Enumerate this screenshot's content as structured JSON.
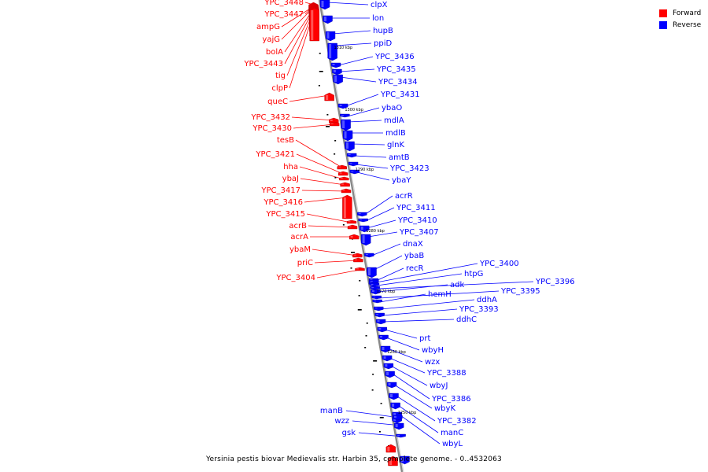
{
  "legend": {
    "forward_label": "Forward",
    "reverse_label": "Reverse",
    "forward_color": "#ff0000",
    "reverse_color": "#0000ff"
  },
  "caption": "Yersinia pestis biovar Medievalis str. Harbin 35, complete genome. - 0..4532063",
  "axis_color": "#888888",
  "position_labels": [
    "1310 kbp",
    "1300 kbp",
    "1290 kbp",
    "1280 kbp",
    "1270 kbp",
    "1260 kbp",
    "1250 kbp"
  ],
  "forward_genes": [
    "YPC_3448",
    "YPC_3447",
    "ampG",
    "yajG",
    "bolA",
    "YPC_3443",
    "tig",
    "clpP",
    "queC",
    "YPC_3432",
    "YPC_3430",
    "tesB",
    "YPC_3421",
    "hha",
    "ybaJ",
    "YPC_3417",
    "YPC_3416",
    "YPC_3415",
    "acrB",
    "acrA",
    "ybaM",
    "priC",
    "YPC_3404"
  ],
  "reverse_genes": [
    "clpX",
    "lon",
    "hupB",
    "ppiD",
    "YPC_3436",
    "YPC_3435",
    "YPC_3434",
    "YPC_3431",
    "ybaO",
    "mdlA",
    "mdlB",
    "glnK",
    "amtB",
    "YPC_3423",
    "ybaY",
    "acrR",
    "YPC_3411",
    "YPC_3410",
    "YPC_3407",
    "dnaX",
    "ybaB",
    "recR",
    "YPC_3400",
    "htpG",
    "YPC_3396",
    "adk",
    "YPC_3395",
    "hemH",
    "ddhA",
    "YPC_3393",
    "ddhC",
    "prt",
    "wbyH",
    "wzx",
    "YPC_3388",
    "wbyJ",
    "YPC_3386",
    "wbyK",
    "YPC_3382",
    "manC",
    "wbyL",
    "manB",
    "wzz",
    "gsk"
  ]
}
